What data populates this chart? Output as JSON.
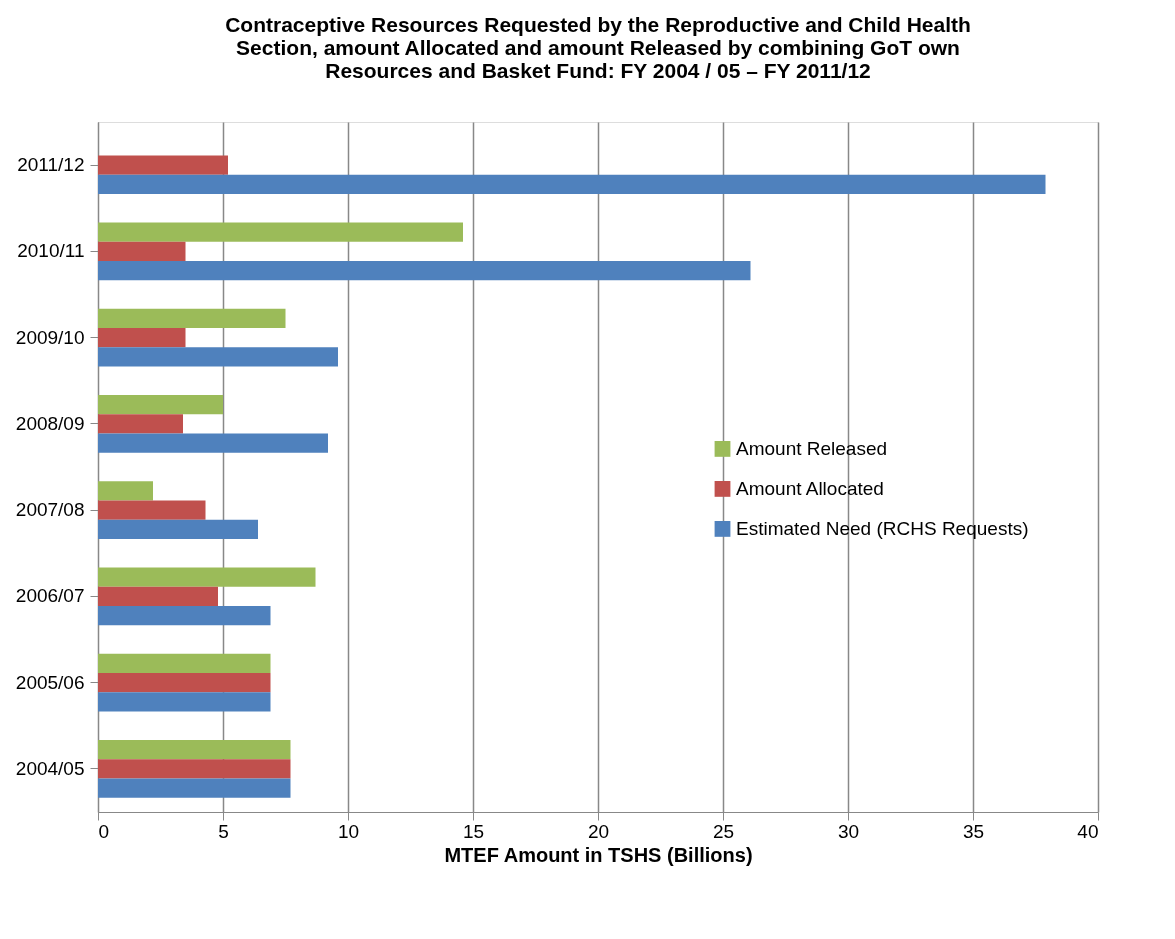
{
  "chart_data": {
    "type": "bar",
    "orientation": "horizontal",
    "title": "Contraceptive Resources Requested by the Reproductive and Child Health\nSection, amount Allocated and amount Released by combining GoT own\nResources and Basket Fund: FY 2004 / 05 – FY 2011/12",
    "xlabel": "MTEF Amount in TSHS (Billions)",
    "categories": [
      "2011/12",
      "2010/11",
      "2009/10",
      "2008/09",
      "2007/08",
      "2006/07",
      "2005/06",
      "2004/05"
    ],
    "series": [
      {
        "name": "Amount Released",
        "color": "#9bbb59",
        "values": [
          null,
          14.6,
          7.5,
          5.0,
          2.2,
          8.7,
          6.9,
          7.7
        ]
      },
      {
        "name": "Amount Allocated",
        "color": "#c0504d",
        "values": [
          5.2,
          3.5,
          3.5,
          3.4,
          4.3,
          4.8,
          6.9,
          7.7
        ]
      },
      {
        "name": "Estimated Need (RCHS Requests)",
        "color": "#4f81bd",
        "values": [
          37.9,
          26.1,
          9.6,
          9.2,
          6.4,
          6.9,
          6.9,
          7.7
        ]
      }
    ],
    "xlim": [
      0,
      40
    ],
    "xticks": [
      0,
      5,
      10,
      15,
      20,
      25,
      30,
      35,
      40
    ],
    "grid": "x",
    "legend": "right"
  }
}
